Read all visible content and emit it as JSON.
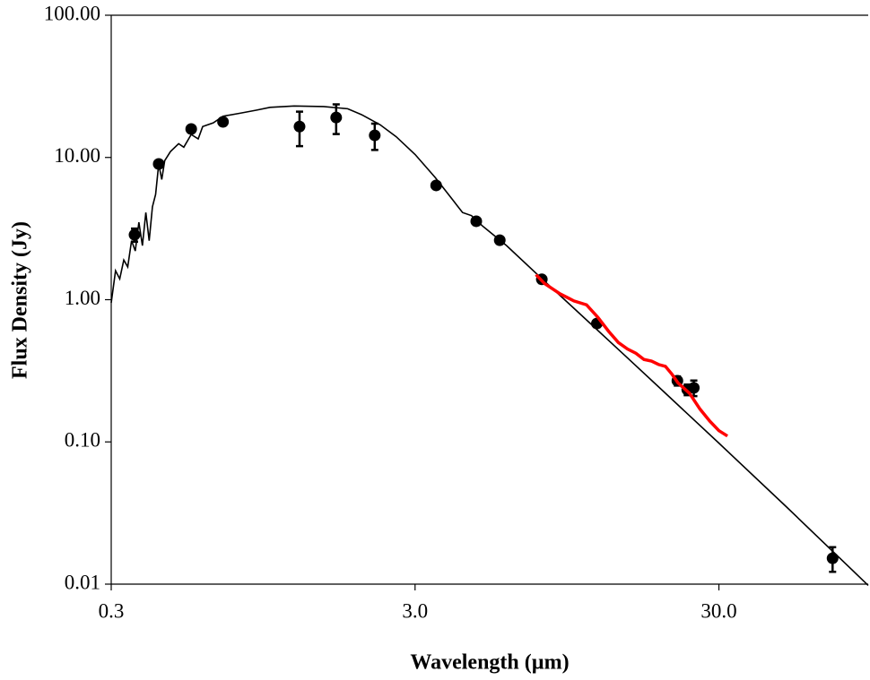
{
  "chart_data": {
    "type": "line",
    "xlabel": "Wavelength (µm)",
    "ylabel": "Flux Density (Jy)",
    "xscale": "log",
    "yscale": "log",
    "xlim": [
      0.3,
      93
    ],
    "ylim": [
      0.01,
      100
    ],
    "xticks": [
      {
        "value": 0.3,
        "label": "0.3"
      },
      {
        "value": 3,
        "label": "3.0"
      },
      {
        "value": 30,
        "label": "30.0"
      }
    ],
    "yticks": [
      {
        "value": 0.01,
        "label": "0.01"
      },
      {
        "value": 0.1,
        "label": "0.10"
      },
      {
        "value": 1,
        "label": "1.00"
      },
      {
        "value": 10,
        "label": "10.00"
      },
      {
        "value": 100,
        "label": "100.00"
      }
    ],
    "series": [
      {
        "color": "#000000",
        "mode": "line",
        "x": [
          0.3,
          0.31,
          0.32,
          0.33,
          0.34,
          0.35,
          0.36,
          0.37,
          0.38,
          0.39,
          0.4,
          0.41,
          0.42,
          0.43,
          0.44,
          0.45,
          0.47,
          0.5,
          0.52,
          0.55,
          0.58,
          0.6,
          0.65,
          0.7,
          0.8,
          0.9,
          1.0,
          1.2,
          1.5,
          1.8,
          2.0,
          2.3,
          2.6,
          3.0,
          3.5,
          4.0,
          4.3,
          4.6,
          5.0,
          6.0,
          8.0,
          10.0,
          15.0,
          20.0,
          30.0,
          50.0,
          93.0
        ],
        "values": [
          0.95,
          1.6,
          1.4,
          1.9,
          1.7,
          2.6,
          2.2,
          3.5,
          2.4,
          4.1,
          2.6,
          4.5,
          5.5,
          9.0,
          7.0,
          9.5,
          11.0,
          12.5,
          11.8,
          14.5,
          13.5,
          16.5,
          17.5,
          19.5,
          20.5,
          21.5,
          22.5,
          23.0,
          22.8,
          22.0,
          20.0,
          17.0,
          14.0,
          10.5,
          7.2,
          5.0,
          4.1,
          3.9,
          3.3,
          2.4,
          1.35,
          0.87,
          0.39,
          0.22,
          0.098,
          0.035,
          0.0098
        ]
      },
      {
        "color": "#000000",
        "mode": "markers",
        "x": [
          0.358,
          0.43,
          0.55,
          0.7,
          1.25,
          1.65,
          2.21,
          3.52,
          4.77,
          5.7,
          7.84,
          11.9,
          21.9,
          23.6,
          24.8,
          71.0
        ],
        "values": [
          2.86,
          9.0,
          15.85,
          17.8,
          16.5,
          19.1,
          14.3,
          6.36,
          3.56,
          2.62,
          1.39,
          0.68,
          0.269,
          0.233,
          0.24,
          0.0152
        ],
        "errors": [
          0.3,
          0.5,
          0.8,
          0.8,
          4.5,
          4.5,
          3.0,
          0.3,
          0.2,
          0.1,
          0.08,
          0.04,
          0.02,
          0.02,
          0.03,
          0.003
        ]
      },
      {
        "color": "#ff0000",
        "mode": "line",
        "x": [
          7.5,
          8.0,
          9.0,
          10.0,
          11.0,
          12.0,
          13.0,
          14.0,
          15.0,
          16.0,
          17.0,
          18.0,
          19.0,
          20.0,
          21.0,
          22.0,
          24.0,
          26.0,
          28.0,
          30.0,
          32.0
        ],
        "values": [
          1.5,
          1.3,
          1.1,
          0.98,
          0.92,
          0.75,
          0.6,
          0.5,
          0.45,
          0.42,
          0.38,
          0.37,
          0.35,
          0.34,
          0.3,
          0.26,
          0.22,
          0.17,
          0.14,
          0.12,
          0.11
        ]
      }
    ]
  }
}
